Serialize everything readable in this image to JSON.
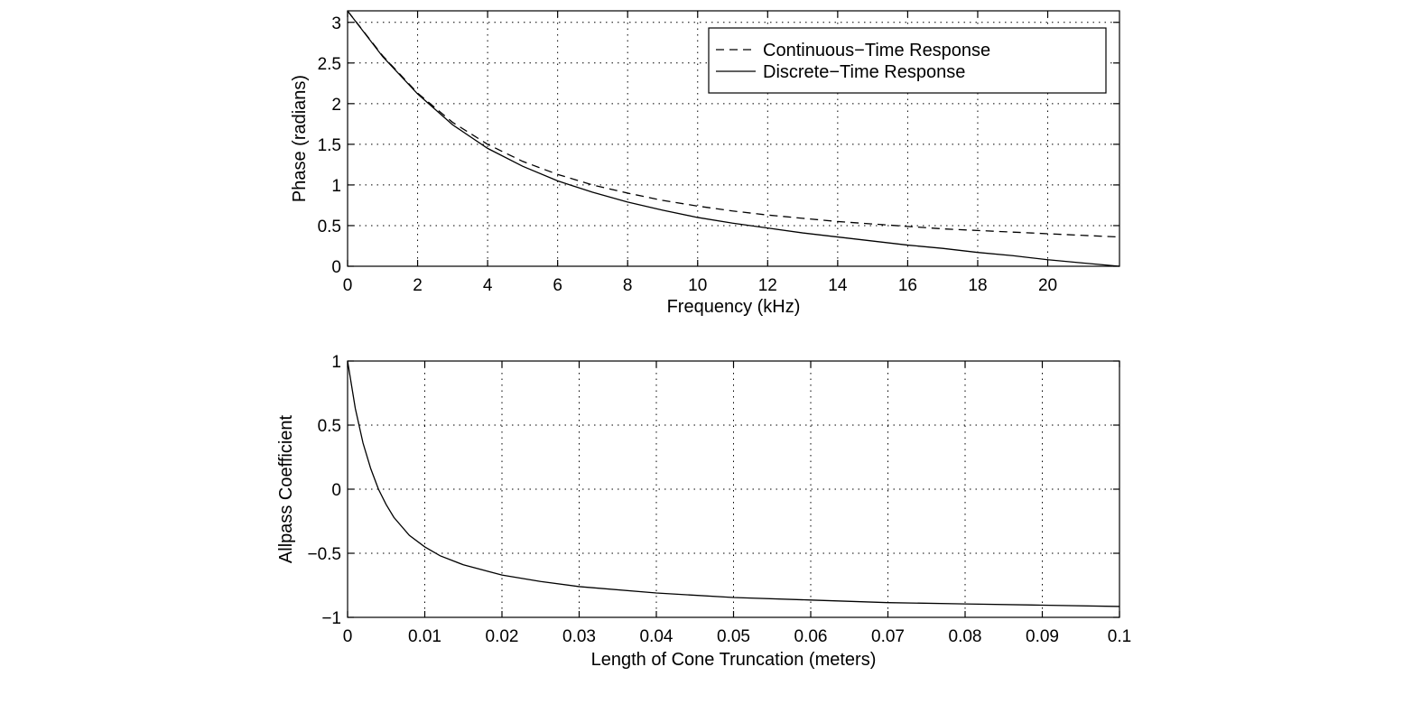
{
  "chart_data": [
    {
      "type": "line",
      "title": "",
      "xlabel": "Frequency (kHz)",
      "ylabel": "Phase (radians)",
      "xlim": [
        0,
        22.05
      ],
      "ylim": [
        0,
        3.14159
      ],
      "xticks": [
        0,
        2,
        4,
        6,
        8,
        10,
        12,
        14,
        16,
        18,
        20
      ],
      "xtick_labels": [
        "0",
        "2",
        "4",
        "6",
        "8",
        "10",
        "12",
        "14",
        "16",
        "18",
        "20"
      ],
      "yticks": [
        0,
        0.5,
        1,
        1.5,
        2,
        2.5,
        3
      ],
      "ytick_labels": [
        "0",
        "0.5",
        "1",
        "1.5",
        "2",
        "2.5",
        "3"
      ],
      "grid": true,
      "legend": "top-right",
      "series": [
        {
          "name": "Continuous−Time Response",
          "style": "dashed",
          "color": "#000000",
          "x": [
            0,
            1,
            2,
            3,
            4,
            5,
            6,
            7,
            8,
            9,
            10,
            11,
            12,
            13,
            14,
            15,
            16,
            17,
            18,
            19,
            20,
            21,
            22.05
          ],
          "y": [
            3.14,
            2.59,
            2.13,
            1.77,
            1.5,
            1.29,
            1.13,
            1.0,
            0.9,
            0.81,
            0.74,
            0.68,
            0.63,
            0.59,
            0.55,
            0.52,
            0.49,
            0.46,
            0.44,
            0.42,
            0.4,
            0.38,
            0.36
          ]
        },
        {
          "name": "Discrete−Time Response",
          "style": "solid",
          "color": "#000000",
          "x": [
            0,
            1,
            2,
            3,
            4,
            5,
            6,
            7,
            8,
            9,
            10,
            11,
            12,
            13,
            14,
            15,
            16,
            17,
            18,
            19,
            20,
            21,
            22.05
          ],
          "y": [
            3.14,
            2.58,
            2.12,
            1.74,
            1.45,
            1.23,
            1.05,
            0.91,
            0.79,
            0.69,
            0.6,
            0.53,
            0.47,
            0.41,
            0.36,
            0.31,
            0.26,
            0.22,
            0.17,
            0.13,
            0.08,
            0.04,
            0.0
          ]
        }
      ]
    },
    {
      "type": "line",
      "title": "",
      "xlabel": "Length of Cone Truncation (meters)",
      "ylabel": "Allpass Coefficient",
      "xlim": [
        0,
        0.1
      ],
      "ylim": [
        -1,
        1
      ],
      "xticks": [
        0,
        0.01,
        0.02,
        0.03,
        0.04,
        0.05,
        0.06,
        0.07,
        0.08,
        0.09,
        0.1
      ],
      "xtick_labels": [
        "0",
        "0.01",
        "0.02",
        "0.03",
        "0.04",
        "0.05",
        "0.06",
        "0.07",
        "0.08",
        "0.09",
        "0.1"
      ],
      "yticks": [
        -1,
        -0.5,
        0,
        0.5,
        1
      ],
      "ytick_labels": [
        "−1",
        "−0.5",
        "0",
        "0.5",
        "1"
      ],
      "grid": true,
      "series": [
        {
          "style": "solid",
          "color": "#000000",
          "x": [
            0,
            0.001,
            0.002,
            0.003,
            0.004,
            0.005,
            0.006,
            0.008,
            0.01,
            0.012,
            0.015,
            0.02,
            0.025,
            0.03,
            0.04,
            0.05,
            0.06,
            0.07,
            0.08,
            0.09,
            0.1
          ],
          "y": [
            1.0,
            0.63,
            0.36,
            0.16,
            0.0,
            -0.12,
            -0.22,
            -0.36,
            -0.45,
            -0.52,
            -0.59,
            -0.67,
            -0.72,
            -0.76,
            -0.81,
            -0.845,
            -0.865,
            -0.885,
            -0.895,
            -0.905,
            -0.915
          ]
        }
      ]
    }
  ]
}
